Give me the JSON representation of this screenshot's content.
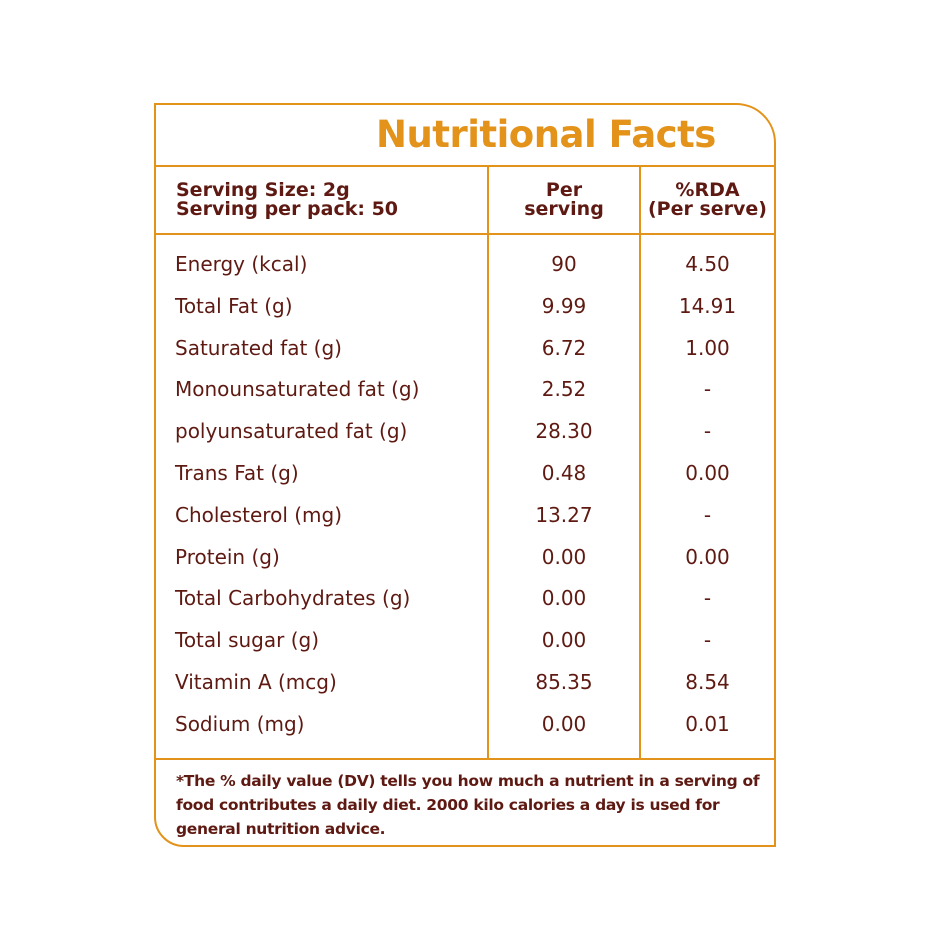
{
  "title": "Nutritional Facts",
  "header": {
    "serving_size": "Serving Size: 2g",
    "serving_per_pack": "Serving per pack: 50",
    "per_serving_line1": "Per",
    "per_serving_line2": "serving",
    "rda_line1": "%RDA",
    "rda_line2": "(Per serve)"
  },
  "rows": [
    {
      "name": "Energy (kcal)",
      "per_serving": "90",
      "rda": "4.50"
    },
    {
      "name": "Total Fat (g)",
      "per_serving": "9.99",
      "rda": "14.91"
    },
    {
      "name": "Saturated fat (g)",
      "per_serving": "6.72",
      "rda": "1.00"
    },
    {
      "name": "Monounsaturated fat (g)",
      "per_serving": "2.52",
      "rda": "-"
    },
    {
      "name": "polyunsaturated fat (g)",
      "per_serving": "28.30",
      "rda": "-"
    },
    {
      "name": "Trans Fat (g)",
      "per_serving": "0.48",
      "rda": "0.00"
    },
    {
      "name": "Cholesterol (mg)",
      "per_serving": "13.27",
      "rda": "-"
    },
    {
      "name": "Protein (g)",
      "per_serving": "0.00",
      "rda": "0.00"
    },
    {
      "name": "Total Carbohydrates  (g)",
      "per_serving": "0.00",
      "rda": "-"
    },
    {
      "name": "Total sugar (g)",
      "per_serving": "0.00",
      "rda": "-"
    },
    {
      "name": "Vitamin A (mcg)",
      "per_serving": "85.35",
      "rda": "8.54"
    },
    {
      "name": "Sodium (mg)",
      "per_serving": "0.00",
      "rda": "0.01"
    }
  ],
  "footnote": "*The % daily value (DV) tells you how much a nutrient in a serving of food contributes a daily diet. 2000 kilo calories a day is used for general nutrition advice.",
  "colors": {
    "accent": "#e3921a",
    "text": "#5e1a12"
  }
}
